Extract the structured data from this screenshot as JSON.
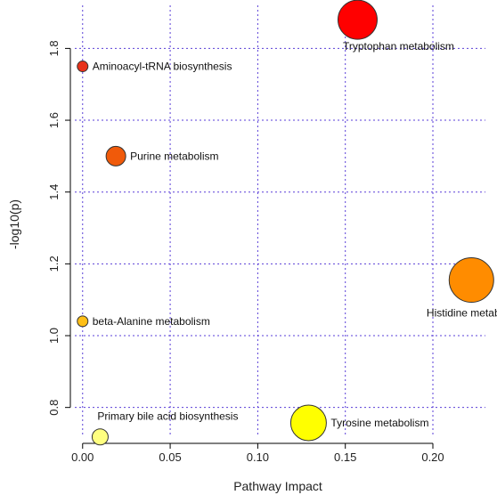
{
  "chart_data": {
    "type": "scatter",
    "title": "",
    "xlabel": "Pathway Impact",
    "ylabel": "-log10(p)",
    "xlim": [
      -0.007,
      0.23
    ],
    "ylim": [
      0.7,
      1.92
    ],
    "x_ticks": [
      "0.00",
      "0.05",
      "0.10",
      "0.15",
      "0.20"
    ],
    "x_tick_values": [
      0,
      0.05,
      0.1,
      0.15,
      0.2
    ],
    "y_ticks": [
      "0.8",
      "1.0",
      "1.2",
      "1.4",
      "1.6",
      "1.8"
    ],
    "y_tick_values": [
      0.8,
      1.0,
      1.2,
      1.4,
      1.6,
      1.8
    ],
    "grid": true,
    "points": [
      {
        "label": "Tryptophan metabolism",
        "x": 0.157,
        "y": 1.88,
        "size": 22,
        "color": "#ff0000",
        "label_pos": "below"
      },
      {
        "label": "Aminoacyl-tRNA biosynthesis",
        "x": 0.0,
        "y": 1.75,
        "size": 6,
        "color": "#e8321a",
        "label_pos": "right"
      },
      {
        "label": "Purine metabolism",
        "x": 0.019,
        "y": 1.5,
        "size": 11,
        "color": "#f05a0a",
        "label_pos": "right"
      },
      {
        "label": "Histidine metabolism",
        "x": 0.222,
        "y": 1.155,
        "size": 25,
        "color": "#ff8c00",
        "label_pos": "below-left"
      },
      {
        "label": "beta-Alanine metabolism",
        "x": 0.0,
        "y": 1.04,
        "size": 6,
        "color": "#ffbf17",
        "label_pos": "right"
      },
      {
        "label": "Tyrosine metabolism",
        "x": 0.129,
        "y": 0.757,
        "size": 20,
        "color": "#ffff00",
        "label_pos": "right"
      },
      {
        "label": "Primary bile acid biosynthesis",
        "x": 0.01,
        "y": 0.718,
        "size": 9,
        "color": "#ffff80",
        "label_pos": "above"
      }
    ]
  }
}
